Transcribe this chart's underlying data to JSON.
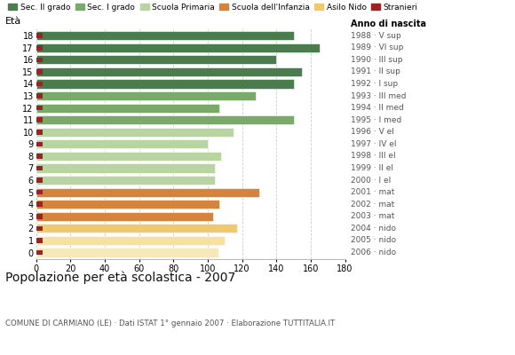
{
  "ages": [
    18,
    17,
    16,
    15,
    14,
    13,
    12,
    11,
    10,
    9,
    8,
    7,
    6,
    5,
    4,
    3,
    2,
    1,
    0
  ],
  "values": [
    150,
    165,
    140,
    155,
    150,
    128,
    107,
    150,
    115,
    100,
    108,
    104,
    104,
    130,
    107,
    103,
    117,
    110,
    106
  ],
  "right_labels": [
    "1988 · V sup",
    "1989 · VI sup",
    "1990 · III sup",
    "1991 · II sup",
    "1992 · I sup",
    "1993 · III med",
    "1994 · II med",
    "1995 · I med",
    "1996 · V el",
    "1997 · IV el",
    "1998 · III el",
    "1999 · II el",
    "2000 · I el",
    "2001 · mat",
    "2002 · mat",
    "2003 · mat",
    "2004 · nido",
    "2005 · nido",
    "2006 · nido"
  ],
  "bar_colors": [
    "#4a7c4e",
    "#4a7c4e",
    "#4a7c4e",
    "#4a7c4e",
    "#4a7c4e",
    "#7aaa6a",
    "#7aaa6a",
    "#7aaa6a",
    "#b8d4a0",
    "#b8d4a0",
    "#b8d4a0",
    "#b8d4a0",
    "#b8d4a0",
    "#d4843c",
    "#d4843c",
    "#d4843c",
    "#f0c870",
    "#f8e0a0",
    "#f8e8b8"
  ],
  "stranieri_color": "#9b2325",
  "legend_labels": [
    "Sec. II grado",
    "Sec. I grado",
    "Scuola Primaria",
    "Scuola dell'Infanzia",
    "Asilo Nido",
    "Stranieri"
  ],
  "legend_colors": [
    "#4a7c4e",
    "#7aaa6a",
    "#b8d4a0",
    "#d4843c",
    "#f0c870",
    "#9b2325"
  ],
  "title": "Popolazione per età scolastica - 2007",
  "subtitle": "COMUNE DI CARMIANO (LE) · Dati ISTAT 1° gennaio 2007 · Elaborazione TUTTITALIA.IT",
  "anno_label": "Anno di nascita",
  "eta_label": "Età",
  "xlim_max": 180,
  "xticks": [
    0,
    20,
    40,
    60,
    80,
    100,
    120,
    140,
    160,
    180
  ],
  "grid_color": "#cccccc",
  "bg_color": "#ffffff",
  "bar_height": 0.75
}
